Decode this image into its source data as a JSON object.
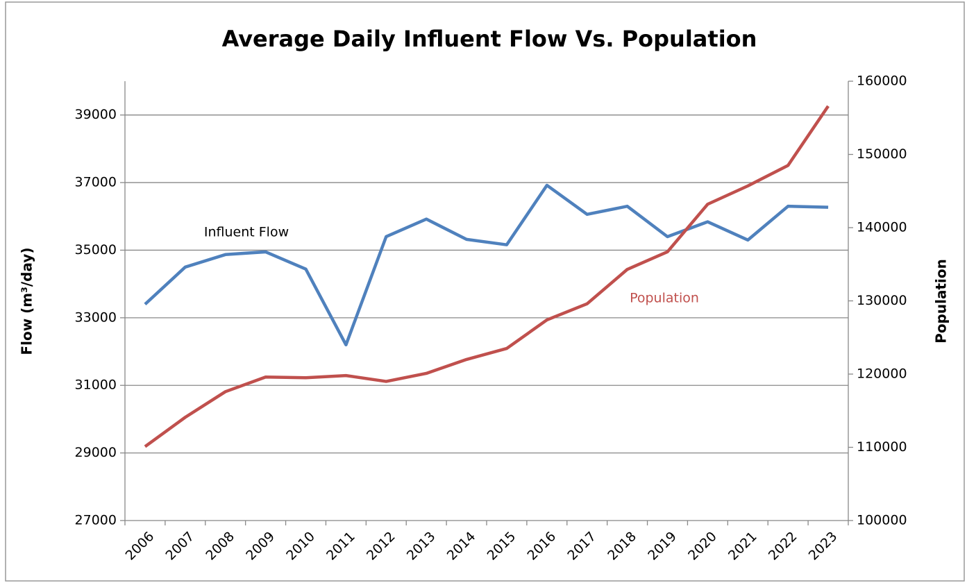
{
  "chart_data": {
    "type": "line",
    "title": "Average Daily Influent Flow Vs. Population",
    "ylabel": "Flow  (m³/day)",
    "y2label": "Population",
    "categories": [
      "2006",
      "2007",
      "2008",
      "2009",
      "2010",
      "2011",
      "2012",
      "2013",
      "2014",
      "2015",
      "2016",
      "2017",
      "2018",
      "2019",
      "2020",
      "2021",
      "2022",
      "2023"
    ],
    "series": [
      {
        "name": "Influent Flow",
        "color": "#4f81bd",
        "axis": "y",
        "values": [
          33400,
          34500,
          34870,
          34950,
          34440,
          32200,
          35400,
          35920,
          35320,
          35160,
          36920,
          36060,
          36300,
          35400,
          35840,
          35300,
          36300,
          36270
        ]
      },
      {
        "name": "Population",
        "color": "#c0504d",
        "axis": "y2",
        "values": [
          110100,
          114100,
          117600,
          119600,
          119500,
          119800,
          119000,
          120100,
          122000,
          123500,
          127400,
          129600,
          134300,
          136700,
          143200,
          145700,
          148500,
          156600
        ]
      }
    ],
    "ylim": [
      27000,
      40000
    ],
    "yticks": [
      27000,
      29000,
      31000,
      33000,
      35000,
      37000,
      39000
    ],
    "y2lim": [
      100000,
      160000
    ],
    "y2ticks": [
      100000,
      110000,
      120000,
      130000,
      140000,
      150000,
      160000
    ],
    "grid": true
  }
}
